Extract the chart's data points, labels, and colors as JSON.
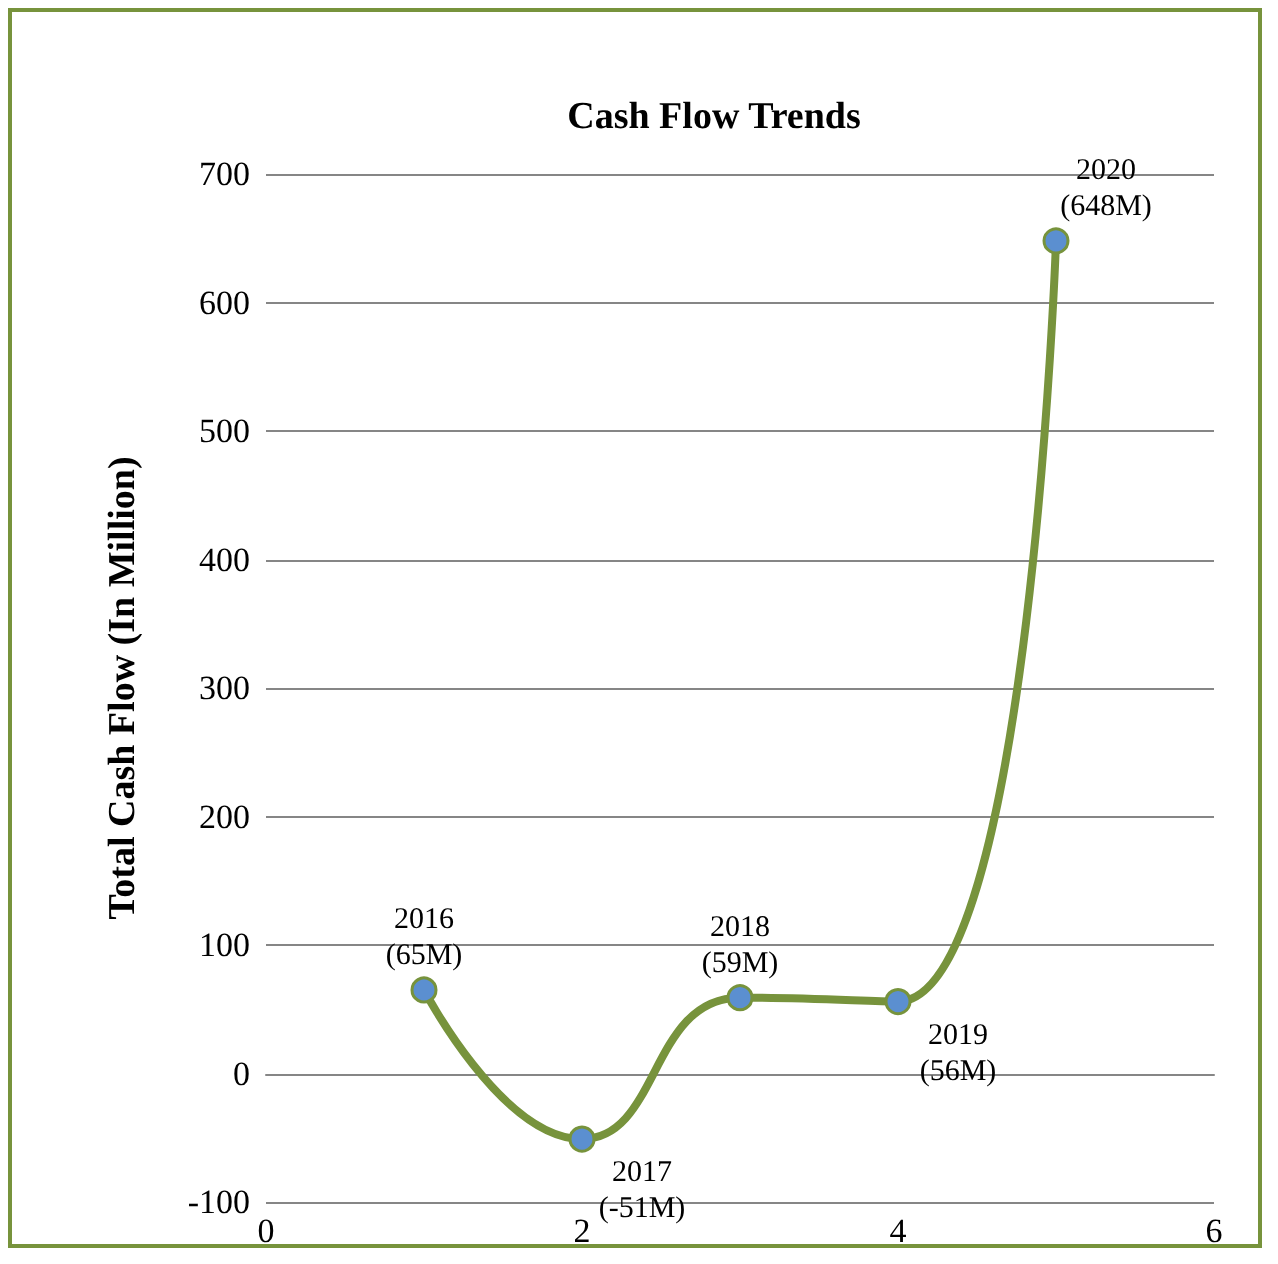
{
  "chart_data": {
    "type": "line",
    "title": "Cash Flow Trends",
    "ylabel": "Total Cash Flow (In Million)",
    "x": [
      1,
      2,
      3,
      4,
      5
    ],
    "series": [
      {
        "color": "#77933c",
        "values": [
          65,
          -51,
          59,
          56,
          648
        ]
      }
    ],
    "annotations": [
      {
        "text": "2016\n(65M)",
        "x": 1,
        "y": 65
      },
      {
        "text": "2017\n(-51M)",
        "x": 2,
        "y": -51
      },
      {
        "text": "2018\n(59M)",
        "x": 3,
        "y": 59
      },
      {
        "text": "2019\n(56M)",
        "x": 4,
        "y": 56
      },
      {
        "text": "2020\n(648M)",
        "x": 5,
        "y": 648
      }
    ],
    "xlim": [
      0,
      6
    ],
    "xticks": [
      0,
      2,
      4,
      6
    ],
    "ylim": [
      -100,
      700
    ],
    "yticks": [
      -100,
      0,
      100,
      200,
      300,
      400,
      500,
      600,
      700
    ],
    "grid": "y",
    "marker": "circle",
    "line_style": "solid"
  }
}
